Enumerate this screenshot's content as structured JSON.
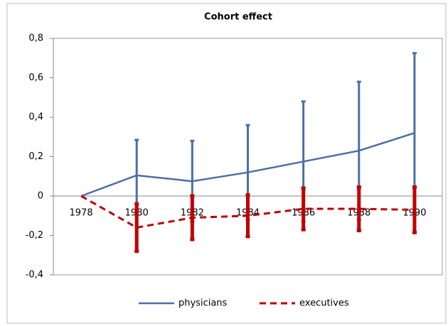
{
  "chart_data": {
    "type": "line",
    "title": "Cohort effect",
    "categories": [
      "1978",
      "1980",
      "1982",
      "1984",
      "1986",
      "1988",
      "1990"
    ],
    "series": [
      {
        "name": "physicians",
        "color": "#4a6fa5",
        "dash": false,
        "values": [
          0,
          0.105,
          0.075,
          0.12,
          0.175,
          0.23,
          0.32
        ],
        "errors": [
          null,
          0.18,
          0.205,
          0.24,
          0.305,
          0.35,
          0.405
        ]
      },
      {
        "name": "executives",
        "color": "#c00000",
        "dash": true,
        "values": [
          0,
          -0.16,
          -0.11,
          -0.1,
          -0.065,
          -0.065,
          -0.07
        ],
        "errors": [
          null,
          0.12,
          0.11,
          0.105,
          0.105,
          0.11,
          0.115
        ]
      }
    ],
    "ylim": [
      -0.4,
      0.8
    ],
    "yticks": [
      {
        "value": -0.4,
        "label": "-0,4"
      },
      {
        "value": -0.2,
        "label": "-0,2"
      },
      0,
      {
        "value": 0.2,
        "label": "0,2"
      },
      {
        "value": 0.4,
        "label": "0,4"
      },
      {
        "value": 0.6,
        "label": "0,6"
      },
      {
        "value": 0.8,
        "label": "0,8"
      }
    ],
    "grid": false,
    "legend": "bottom"
  }
}
